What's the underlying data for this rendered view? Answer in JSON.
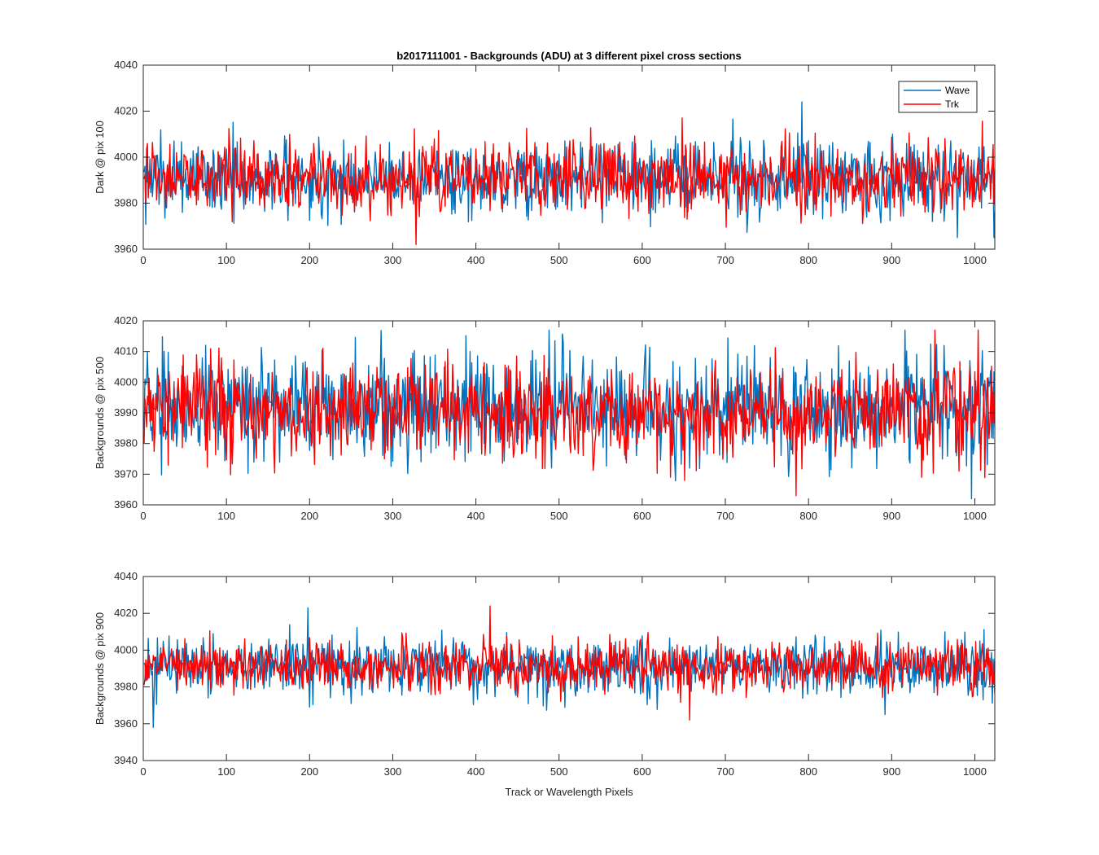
{
  "chart_data": {
    "type": "line",
    "title": "b2017111001 - Backgrounds (ADU) at 3 different pixel cross sections",
    "xlabel": "Track or Wavelength Pixels",
    "grid": false,
    "legend": {
      "placement": "top-right",
      "subplot": 0
    },
    "colors": {
      "Wave": "#0072BD",
      "Trk": "#FF0000"
    },
    "subplots": [
      {
        "ylabel": "Dark @ pix 100",
        "xlim": [
          0,
          1024
        ],
        "ylim": [
          3960,
          4040
        ],
        "xticks": [
          0,
          100,
          200,
          300,
          400,
          500,
          600,
          700,
          800,
          900,
          1000
        ],
        "yticks": [
          3960,
          3980,
          4000,
          4020,
          4040
        ],
        "series": [
          {
            "name": "Wave",
            "mean": 3991,
            "std": 8,
            "min": 3965,
            "max": 4024,
            "n": 1024
          },
          {
            "name": "Trk",
            "mean": 3991,
            "std": 7.5,
            "min": 3962,
            "max": 4017,
            "n": 1024
          }
        ]
      },
      {
        "ylabel": "Backgrounds @ pix 500",
        "xlim": [
          0,
          1024
        ],
        "ylim": [
          3960,
          4020
        ],
        "xticks": [
          0,
          100,
          200,
          300,
          400,
          500,
          600,
          700,
          800,
          900,
          1000
        ],
        "yticks": [
          3960,
          3970,
          3980,
          3990,
          4000,
          4010,
          4020
        ],
        "series": [
          {
            "name": "Wave",
            "mean": 3992,
            "std": 8.5,
            "min": 3962,
            "max": 4017,
            "n": 1024
          },
          {
            "name": "Trk",
            "mean": 3991,
            "std": 8,
            "min": 3963,
            "max": 4017,
            "n": 1024
          }
        ]
      },
      {
        "ylabel": "Backgrounds @ pix 900",
        "xlim": [
          0,
          1024
        ],
        "ylim": [
          3940,
          4040
        ],
        "xticks": [
          0,
          100,
          200,
          300,
          400,
          500,
          600,
          700,
          800,
          900,
          1000
        ],
        "yticks": [
          3940,
          3960,
          3980,
          4000,
          4020,
          4040
        ],
        "series": [
          {
            "name": "Wave",
            "mean": 3991,
            "std": 7.5,
            "min": 3958,
            "max": 4023,
            "n": 1024
          },
          {
            "name": "Trk",
            "mean": 3991,
            "std": 7,
            "min": 3962,
            "max": 4024,
            "n": 1024
          }
        ]
      }
    ]
  }
}
